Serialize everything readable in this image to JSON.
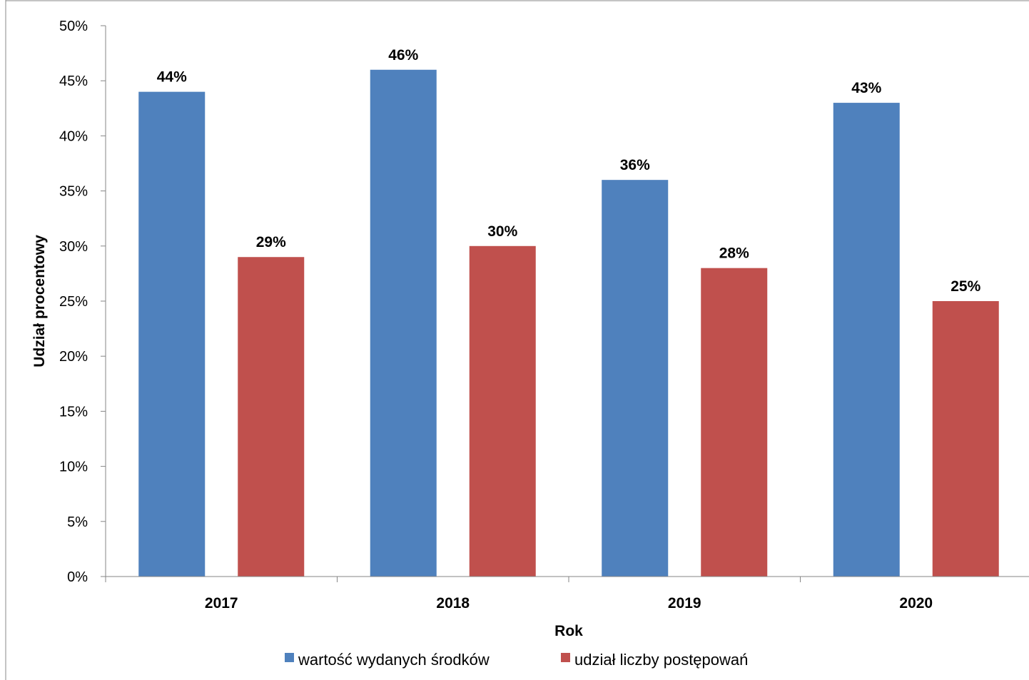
{
  "chart_data": {
    "type": "bar",
    "title": "",
    "xlabel": "Rok",
    "ylabel": "Udział procentowy",
    "categories": [
      "2017",
      "2018",
      "2019",
      "2020"
    ],
    "series": [
      {
        "name": "wartość wydanych środków",
        "color": "#4F81BD",
        "values": [
          44,
          46,
          36,
          43
        ],
        "labels": [
          "44%",
          "46%",
          "36%",
          "43%"
        ]
      },
      {
        "name": "udział liczby postępowań",
        "color": "#C0504D",
        "values": [
          29,
          30,
          28,
          25
        ],
        "labels": [
          "29%",
          "30%",
          "28%",
          "25%"
        ]
      }
    ],
    "ylim": [
      0,
      50
    ],
    "yticks": [
      0,
      5,
      10,
      15,
      20,
      25,
      30,
      35,
      40,
      45,
      50
    ],
    "ytick_labels": [
      "0%",
      "5%",
      "10%",
      "15%",
      "20%",
      "25%",
      "30%",
      "35%",
      "40%",
      "45%",
      "50%"
    ],
    "grid": false,
    "legend_position": "bottom"
  }
}
